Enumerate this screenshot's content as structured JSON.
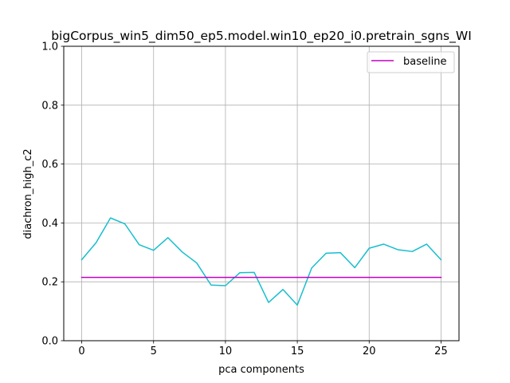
{
  "chart_data": {
    "type": "line",
    "title": "bigCorpus_win5_dim50_ep5.model.win10_ep20_i0.pretrain_sgns_WI",
    "xlabel": "pca components",
    "ylabel": "diachron_high_c2",
    "xlim": [
      -1.25,
      26.25
    ],
    "ylim": [
      0.0,
      1.0
    ],
    "grid": true,
    "legend_position": "top-right",
    "x_ticks": [
      0,
      5,
      10,
      15,
      20,
      25
    ],
    "x_tick_labels": [
      "0",
      "5",
      "10",
      "15",
      "20",
      "25"
    ],
    "y_ticks": [
      0.0,
      0.2,
      0.4,
      0.6,
      0.8,
      1.0
    ],
    "y_tick_labels": [
      "0.0",
      "0.2",
      "0.4",
      "0.6",
      "0.8",
      "1.0"
    ],
    "series": [
      {
        "color": "#17becf",
        "x": [
          0,
          1,
          2,
          3,
          4,
          5,
          6,
          7,
          8,
          9,
          10,
          11,
          12,
          13,
          14,
          15,
          16,
          17,
          18,
          19,
          20,
          21,
          22,
          23,
          24,
          25
        ],
        "values": [
          0.275,
          0.333,
          0.417,
          0.397,
          0.326,
          0.307,
          0.35,
          0.301,
          0.264,
          0.189,
          0.187,
          0.231,
          0.232,
          0.13,
          0.174,
          0.121,
          0.247,
          0.297,
          0.299,
          0.248,
          0.314,
          0.328,
          0.309,
          0.303,
          0.328,
          0.275
        ]
      },
      {
        "name": "baseline",
        "color": "#bf00bf",
        "x": [
          0,
          1,
          2,
          3,
          4,
          5,
          6,
          7,
          8,
          9,
          10,
          11,
          12,
          13,
          14,
          15,
          16,
          17,
          18,
          19,
          20,
          21,
          22,
          23,
          24,
          25
        ],
        "values": [
          0.215,
          0.215,
          0.215,
          0.215,
          0.215,
          0.215,
          0.215,
          0.215,
          0.215,
          0.215,
          0.215,
          0.215,
          0.215,
          0.215,
          0.215,
          0.215,
          0.215,
          0.215,
          0.215,
          0.215,
          0.215,
          0.215,
          0.215,
          0.215,
          0.215,
          0.215
        ]
      }
    ]
  }
}
